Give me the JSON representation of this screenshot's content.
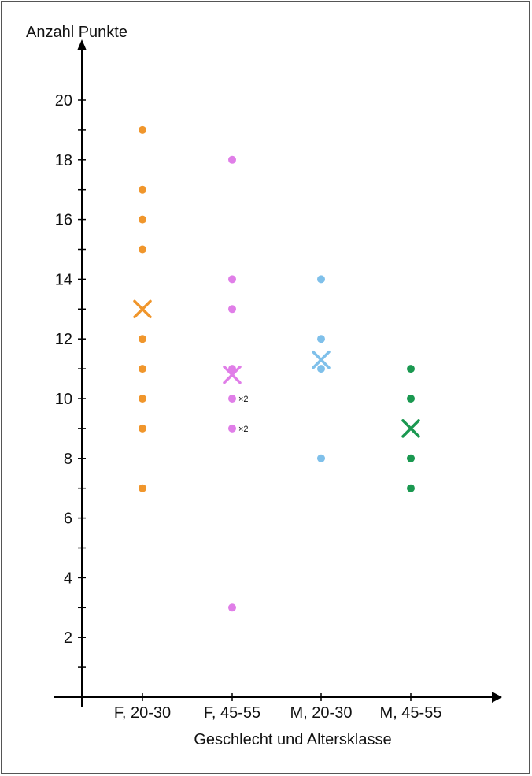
{
  "chart_data": {
    "type": "scatter",
    "title": "",
    "ylabel": "Anzahl Punkte",
    "xlabel": "Geschlecht und Altersklasse",
    "categories": [
      "F, 20-30",
      "F, 45-55",
      "M, 20-30",
      "M, 45-55"
    ],
    "ylim": [
      0,
      21
    ],
    "yticks": [
      2,
      4,
      6,
      8,
      10,
      12,
      14,
      16,
      18,
      20
    ],
    "grid": false,
    "series": [
      {
        "category": "F, 20-30",
        "color": "#f0962c",
        "points": [
          {
            "y": 19
          },
          {
            "y": 17
          },
          {
            "y": 16
          },
          {
            "y": 15
          },
          {
            "y": 12
          },
          {
            "y": 11
          },
          {
            "y": 10
          },
          {
            "y": 9
          },
          {
            "y": 7
          }
        ],
        "mean": 13
      },
      {
        "category": "F, 45-55",
        "color": "#e07ee8",
        "points": [
          {
            "y": 18
          },
          {
            "y": 14
          },
          {
            "y": 13
          },
          {
            "y": 11
          },
          {
            "y": 10,
            "label": "×2"
          },
          {
            "y": 9,
            "label": "×2"
          },
          {
            "y": 3
          }
        ],
        "mean": 10.8
      },
      {
        "category": "M, 20-30",
        "color": "#7fc0ea",
        "points": [
          {
            "y": 14
          },
          {
            "y": 12
          },
          {
            "y": 11
          },
          {
            "y": 8
          }
        ],
        "mean": 11.3
      },
      {
        "category": "M, 45-55",
        "color": "#1a9850",
        "points": [
          {
            "y": 11
          },
          {
            "y": 10
          },
          {
            "y": 8
          },
          {
            "y": 7
          }
        ],
        "mean": 9
      }
    ]
  }
}
